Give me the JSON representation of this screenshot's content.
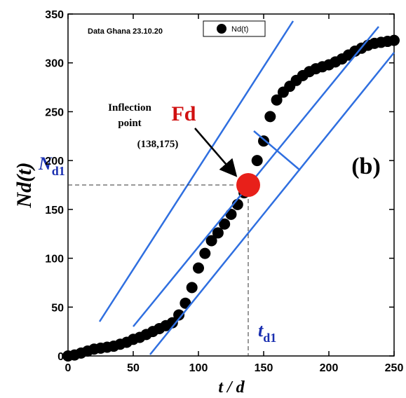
{
  "chart_data": {
    "type": "scatter",
    "title": "Data Ghana 23.10.20",
    "x_label": "t / d",
    "y_label": "Nd(t)",
    "x": [
      0,
      5,
      10,
      15,
      20,
      25,
      30,
      35,
      40,
      45,
      50,
      55,
      60,
      65,
      70,
      75,
      80,
      85,
      90,
      95,
      100,
      105,
      110,
      115,
      120,
      125,
      130,
      135,
      140,
      145,
      150,
      155,
      160,
      165,
      170,
      175,
      180,
      185,
      190,
      195,
      200,
      205,
      210,
      215,
      220,
      225,
      230,
      235,
      240,
      245,
      250
    ],
    "series": [
      {
        "name": "Nd(t)",
        "color": "#000000",
        "values": [
          0,
          1,
          3,
          5,
          7,
          8,
          9,
          10,
          12,
          14,
          17,
          19,
          22,
          25,
          28,
          31,
          34,
          42,
          54,
          70,
          90,
          105,
          118,
          126,
          135,
          145,
          155,
          167,
          180,
          200,
          220,
          245,
          262,
          270,
          276,
          282,
          287,
          291,
          294,
          296,
          298,
          301,
          304,
          308,
          312,
          315,
          318,
          320,
          321,
          322,
          323
        ]
      }
    ],
    "xlim": [
      0,
      250
    ],
    "xticks": [
      0,
      50,
      100,
      150,
      200,
      250
    ],
    "ylim": [
      0,
      350
    ],
    "yticks": [
      0,
      50,
      100,
      150,
      200,
      250,
      300,
      350
    ],
    "annotations": {
      "inflection_line1": "Inflection",
      "inflection_line2": "point",
      "inflection_coords": "(138,175)",
      "fd": "Fd",
      "panel": "(b)",
      "n_d1": {
        "main": "N",
        "sub": "d1"
      },
      "t_d1": {
        "main": "t",
        "sub": "d1"
      }
    }
  }
}
